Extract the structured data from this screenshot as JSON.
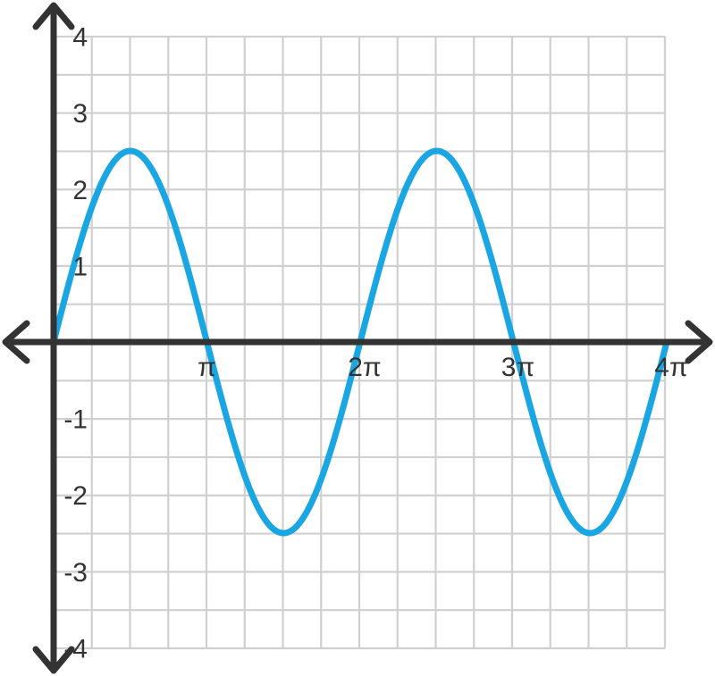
{
  "chart_data": {
    "type": "line",
    "title": "",
    "xlabel": "",
    "ylabel": "",
    "xlim": [
      0,
      12.566
    ],
    "ylim": [
      -4,
      4
    ],
    "grid": true,
    "x_ticks": [
      {
        "value": 3.1416,
        "label": "π"
      },
      {
        "value": 6.2832,
        "label": "2π"
      },
      {
        "value": 9.4248,
        "label": "3π"
      },
      {
        "value": 12.566,
        "label": "4π"
      }
    ],
    "y_ticks": [
      {
        "value": 4,
        "label": "4"
      },
      {
        "value": 3,
        "label": "3"
      },
      {
        "value": 2,
        "label": "2"
      },
      {
        "value": 1,
        "label": "1"
      },
      {
        "value": -1,
        "label": "-1"
      },
      {
        "value": -2,
        "label": "-2"
      },
      {
        "value": -3,
        "label": "-3"
      },
      {
        "value": -4,
        "label": "-4"
      }
    ],
    "series": [
      {
        "color": "#1aa6e3",
        "x": [
          0,
          0.7854,
          1.5708,
          2.3562,
          3.1416,
          3.927,
          4.7124,
          5.4978,
          6.2832,
          7.0686,
          7.854,
          8.6394,
          9.4248,
          10.2102,
          10.9956,
          11.781,
          12.566
        ],
        "y": [
          0,
          1.768,
          2.5,
          1.768,
          0,
          -1.768,
          -2.5,
          -1.768,
          0,
          1.768,
          2.5,
          1.768,
          0,
          -1.768,
          -2.5,
          -1.768,
          0
        ]
      }
    ]
  },
  "colors": {
    "grid": "#d0d0d0",
    "axis": "#333333",
    "curve": "#1aa6e3"
  }
}
